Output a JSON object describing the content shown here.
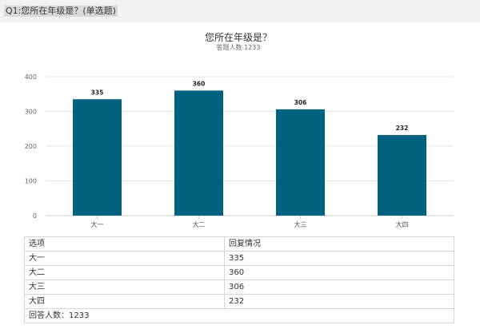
{
  "header": {
    "question": "Q1:您所在年级是？(单选题)"
  },
  "chart_data": {
    "type": "bar",
    "title": "您所在年级是？",
    "subtitle": "答题人数 1233",
    "categories": [
      "大一",
      "大二",
      "大三",
      "大四"
    ],
    "values": [
      335,
      360,
      306,
      232
    ],
    "ylim": [
      0,
      400
    ],
    "yticks": [
      0,
      100,
      200,
      300,
      400
    ],
    "grid": true,
    "bar_color": "#00627f"
  },
  "table": {
    "headers": [
      "选项",
      "回复情况"
    ],
    "rows": [
      [
        "大一",
        "335"
      ],
      [
        "大二",
        "360"
      ],
      [
        "大三",
        "306"
      ],
      [
        "大四",
        "232"
      ]
    ],
    "footer": "回答人数：1233"
  }
}
